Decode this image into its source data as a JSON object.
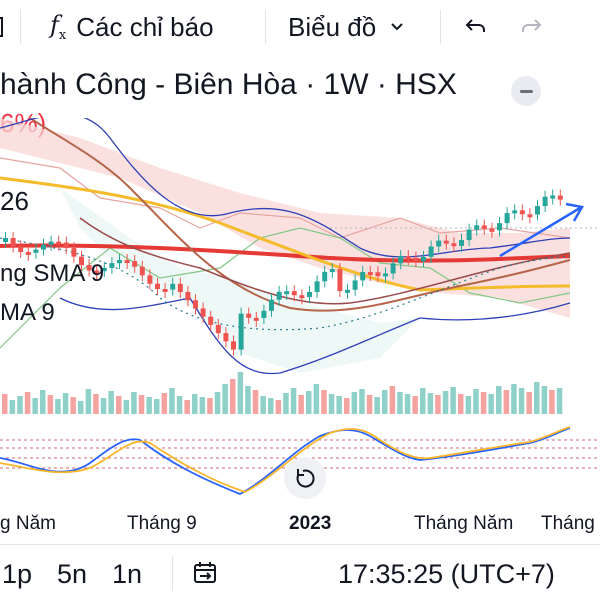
{
  "toolbar": {
    "indicators_label": "Các chỉ báo",
    "chart_type_label": "Biểu đồ"
  },
  "header": {
    "title": "hành Công - Biên Hòa · 1W · HSX",
    "change": "6%)",
    "price_fragment": "26"
  },
  "legend": {
    "sma_line1": "ng SMA 9",
    "sma_line2": "MA 9"
  },
  "x_axis": {
    "labels": [
      "g Năm",
      "Tháng 9",
      "2023",
      "Tháng Năm",
      "Tháng T"
    ]
  },
  "bottom_bar": {
    "interval_1": "1p",
    "interval_2": "5n",
    "interval_3": "1n",
    "time": "17:35:25 (UTC+7)"
  },
  "colors": {
    "up": "#26a69a",
    "down": "#ef5350",
    "cloud_red": "#f8d7d4",
    "cloud_green": "#e0f2ef",
    "sma_long": "#e53935",
    "sma_mid": "#f4bb2a",
    "bollinger": "#2f3fb7",
    "stoch_k": "#2962ff",
    "stoch_d": "#f9b62b"
  },
  "chart_data": {
    "type": "candlestick",
    "period": "1W",
    "candle_count": 74,
    "trend_arrow": "up",
    "subpanel": "stochastic"
  }
}
